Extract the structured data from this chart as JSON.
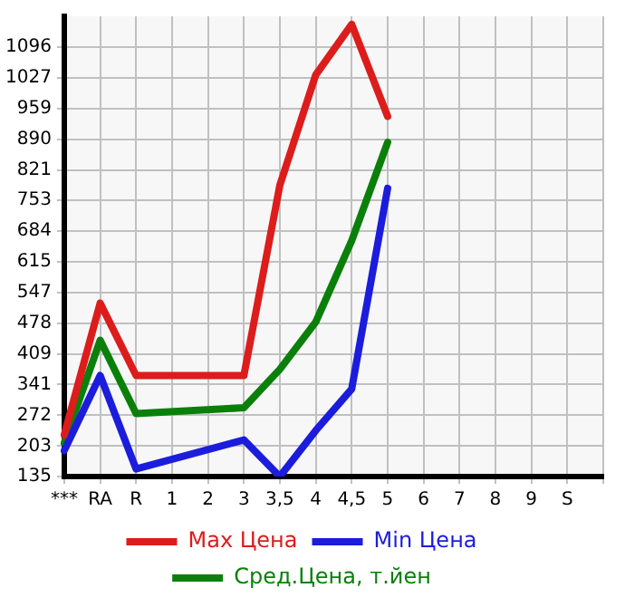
{
  "chart_data": {
    "type": "line",
    "categories": [
      "***",
      "RA",
      "R",
      "1",
      "2",
      "3",
      "3,5",
      "4",
      "4,5",
      "5",
      "6",
      "7",
      "8",
      "9",
      "S",
      null
    ],
    "series": [
      {
        "name": "Max Цена",
        "color": "#dd1c1c",
        "values": [
          228,
          523,
          361,
          null,
          null,
          361,
          787,
          1034,
          1147,
          941,
          null,
          null,
          null,
          null,
          null,
          null
        ]
      },
      {
        "name": "Min Цена",
        "color": "#1c1cdd",
        "values": [
          193,
          361,
          152,
          null,
          null,
          217,
          135,
          238,
          331,
          780,
          null,
          null,
          null,
          null,
          null,
          null
        ]
      },
      {
        "name": "Сред.Цена, т.йен",
        "color": "#0a800a",
        "values": [
          210,
          440,
          276,
          null,
          null,
          289,
          375,
          481,
          663,
          883,
          null,
          null,
          null,
          null,
          null,
          null
        ]
      }
    ],
    "ylim": [
      135,
      1165
    ],
    "yticks": [
      135,
      203,
      272,
      341,
      409,
      478,
      547,
      615,
      684,
      753,
      821,
      890,
      959,
      1027,
      1096
    ],
    "grid": true,
    "legend": "bottom",
    "marker": "none",
    "line_style": "solid"
  }
}
